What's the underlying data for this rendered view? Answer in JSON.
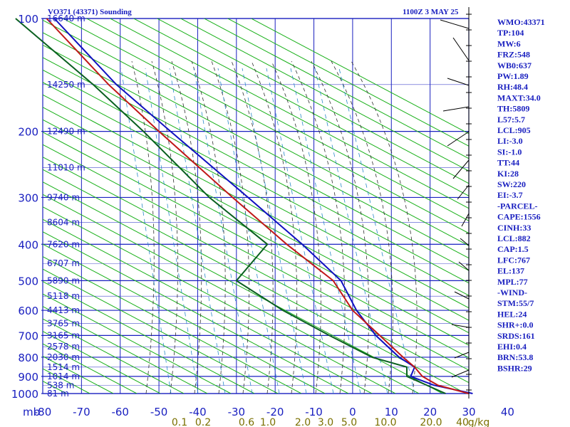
{
  "header": {
    "title": "VO371 (43371) Sounding",
    "time": "1100Z  3 MAY 25"
  },
  "chart_data": {
    "type": "skew-t",
    "y_axis_unit": "mb",
    "pressure_levels": [
      100,
      200,
      300,
      400,
      500,
      600,
      700,
      800,
      900,
      1000
    ],
    "temperature_ticks": [
      -80,
      -70,
      -60,
      -50,
      -40,
      -30,
      -20,
      -10,
      0,
      10,
      20,
      30,
      40
    ],
    "mixing_ratio_labels": [
      "0.1",
      "0.2",
      "0.6",
      "1.0",
      "2.0",
      "3.0",
      "5.0",
      "10.0",
      "20.0",
      "40",
      "g/kg"
    ],
    "height_labels": [
      {
        "p": 100,
        "label": "16640 m"
      },
      {
        "p": 150,
        "label": "14250 m"
      },
      {
        "p": 200,
        "label": "12490 m"
      },
      {
        "p": 250,
        "label": "11010 m"
      },
      {
        "p": 300,
        "label": "9740 m"
      },
      {
        "p": 350,
        "label": "8604 m"
      },
      {
        "p": 400,
        "label": "7620 m"
      },
      {
        "p": 450,
        "label": "6707 m"
      },
      {
        "p": 500,
        "label": "5890 m"
      },
      {
        "p": 550,
        "label": "5118 m"
      },
      {
        "p": 600,
        "label": "4413 m"
      },
      {
        "p": 650,
        "label": "3765 m"
      },
      {
        "p": 700,
        "label": "3165 m"
      },
      {
        "p": 750,
        "label": "2578 m"
      },
      {
        "p": 800,
        "label": "2030 m"
      },
      {
        "p": 850,
        "label": "1514 m"
      },
      {
        "p": 900,
        "label": "1014 m"
      },
      {
        "p": 950,
        "label": "538 m"
      },
      {
        "p": 1000,
        "label": "81 m"
      }
    ],
    "temperature_profile": [
      [
        1000,
        30
      ],
      [
        950,
        22
      ],
      [
        900,
        18
      ],
      [
        850,
        16
      ],
      [
        800,
        13
      ],
      [
        700,
        7
      ],
      [
        600,
        0
      ],
      [
        500,
        -5
      ],
      [
        400,
        -17
      ],
      [
        300,
        -31
      ],
      [
        200,
        -50
      ],
      [
        150,
        -63
      ],
      [
        100,
        -79
      ]
    ],
    "dewpoint_profile": [
      [
        1000,
        24
      ],
      [
        900,
        14
      ],
      [
        850,
        14
      ],
      [
        800,
        5
      ],
      [
        700,
        -6
      ],
      [
        600,
        -18
      ],
      [
        500,
        -30
      ],
      [
        400,
        -22
      ],
      [
        300,
        -37
      ],
      [
        200,
        -54
      ],
      [
        150,
        -67
      ],
      [
        100,
        -87
      ]
    ],
    "parcel_profile": [
      [
        1000,
        31
      ],
      [
        950,
        21
      ],
      [
        900,
        15
      ],
      [
        850,
        16
      ],
      [
        800,
        12
      ],
      [
        700,
        6
      ],
      [
        600,
        1
      ],
      [
        500,
        -3
      ],
      [
        400,
        -13
      ],
      [
        300,
        -27
      ],
      [
        200,
        -47
      ],
      [
        150,
        -61
      ],
      [
        100,
        -77
      ]
    ],
    "series": [
      {
        "name": "temperature",
        "color": "#c01818"
      },
      {
        "name": "dewpoint",
        "color": "#0a6020"
      },
      {
        "name": "parcel",
        "color": "#1010c0"
      }
    ],
    "colors": {
      "grid": "#1a20c0",
      "dry_adiabat": "#18b018",
      "moist_adiabat": "#303030",
      "mixing_ratio": "#2a8ac8",
      "wind_barb": "#000000"
    }
  },
  "indices": [
    "WMO:43371",
    "TP:104",
    "MW:6",
    "FRZ:548",
    "WB0:637",
    "PW:1.89",
    "RH:48.4",
    "MAXT:34.0",
    "TH:5809",
    "L57:5.7",
    "LCL:905",
    "LI:-3.0",
    "SI:-1.0",
    "TT:44",
    "KI:28",
    "SW:220",
    "EI:-3.7",
    "-PARCEL-",
    "CAPE:1556",
    "CINH:33",
    "LCL:882",
    "CAP:1.5",
    "LFC:767",
    "EL:137",
    "MPL:77",
    "-WIND-",
    "STM:55/7",
    "HEL:24",
    "SHR+:0.0",
    "SRDS:161",
    "EHI:0.4",
    "BRN:53.8",
    "BSHR:29"
  ]
}
